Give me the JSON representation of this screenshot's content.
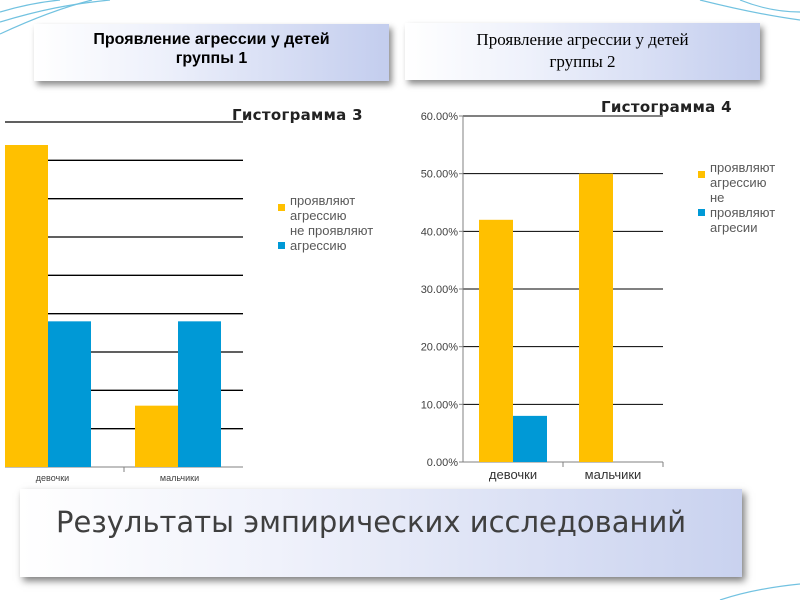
{
  "title_left": {
    "line1": "Проявление агрессии у детей",
    "line2": "группы 1"
  },
  "title_right": {
    "line1": "Проявление агрессии у детей",
    "line2": "группы 2"
  },
  "footer": {
    "text": "Результаты эмпирических исследований"
  },
  "colors": {
    "series1": "#ffc000",
    "series2": "#0099d6",
    "grid": "#000000",
    "axis": "#808080",
    "tick_text": "#404040",
    "decor": "#4fb3d9"
  },
  "chart_data": [
    {
      "type": "bar",
      "title": "Гистограмма 3",
      "categories": [
        "девочки",
        "мальчики"
      ],
      "ylim": [
        0,
        0.45
      ],
      "y_ticks": [
        0,
        0.05,
        0.1,
        0.15,
        0.2,
        0.25,
        0.3,
        0.35,
        0.4,
        0.45
      ],
      "grid": true,
      "legend": "right",
      "series": [
        {
          "name": "проявляют агрессию",
          "values": [
            0.42,
            0.08
          ]
        },
        {
          "name": "не проявляют агрессию",
          "values": [
            0.19,
            0.19
          ]
        }
      ]
    },
    {
      "type": "bar",
      "title": "Гистограмма 4",
      "categories": [
        "девочки",
        "мальчики"
      ],
      "ylim": [
        0,
        0.6
      ],
      "y_ticks": [
        0,
        0.1,
        0.2,
        0.3,
        0.4,
        0.5,
        0.6
      ],
      "y_tick_labels": [
        "0.00%",
        "10.00%",
        "20.00%",
        "30.00%",
        "40.00%",
        "50.00%",
        "60.00%"
      ],
      "grid": true,
      "legend": "right",
      "series": [
        {
          "name": "проявляют агрессию",
          "values": [
            0.42,
            0.5
          ]
        },
        {
          "name": "не проявляют агресии",
          "values": [
            0.08,
            0
          ]
        }
      ]
    }
  ]
}
